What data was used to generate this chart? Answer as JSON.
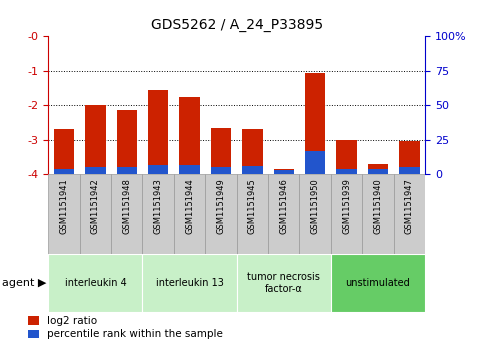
{
  "title": "GDS5262 / A_24_P33895",
  "samples": [
    "GSM1151941",
    "GSM1151942",
    "GSM1151948",
    "GSM1151943",
    "GSM1151944",
    "GSM1151949",
    "GSM1151945",
    "GSM1151946",
    "GSM1151950",
    "GSM1151939",
    "GSM1151940",
    "GSM1151947"
  ],
  "log2_ratio": [
    -2.7,
    -2.0,
    -2.15,
    -1.55,
    -1.75,
    -2.65,
    -2.7,
    -3.85,
    -1.05,
    -3.0,
    -3.7,
    -3.05
  ],
  "percentile_rank": [
    4,
    5,
    5,
    7,
    7,
    5,
    6,
    3,
    17,
    4,
    4,
    5
  ],
  "agents": [
    {
      "label": "interleukin 4",
      "start": 0,
      "end": 3
    },
    {
      "label": "interleukin 13",
      "start": 3,
      "end": 6
    },
    {
      "label": "tumor necrosis\nfactor-α",
      "start": 6,
      "end": 9
    },
    {
      "label": "unstimulated",
      "start": 9,
      "end": 12
    }
  ],
  "bar_color_red": "#cc2200",
  "bar_color_blue": "#2255cc",
  "left_axis_color": "#cc0000",
  "right_axis_color": "#0000cc",
  "yticks_left": [
    0,
    -1,
    -2,
    -3,
    -4
  ],
  "ytick_labels_left": [
    "-0",
    "-1",
    "-2",
    "-3",
    "-4"
  ],
  "yticks_right": [
    0,
    25,
    50,
    75,
    100
  ],
  "ytick_labels_right": [
    "0",
    "25",
    "50",
    "75",
    "100%"
  ],
  "legend_red_label": "log2 ratio",
  "legend_blue_label": "percentile rank within the sample",
  "agent_colors": [
    "#c8f0c8",
    "#c8f0c8",
    "#c8f0c8",
    "#66cc66"
  ],
  "sample_bg_color": "#d0d0d0",
  "background_color": "#ffffff"
}
